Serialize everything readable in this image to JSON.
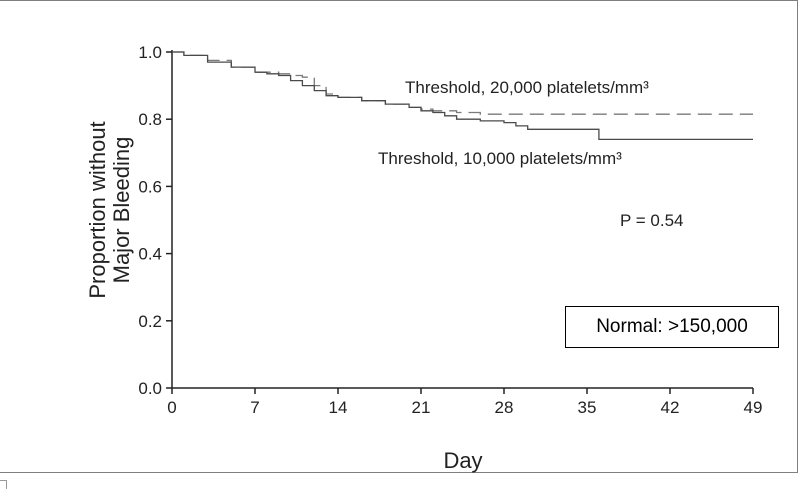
{
  "chart_data": {
    "type": "line",
    "xlabel": "Day",
    "ylabel_line1": "Proportion without",
    "ylabel_line2": "Major Bleeding",
    "xlim": [
      0,
      49
    ],
    "ylim": [
      0.0,
      1.0
    ],
    "xticks": [
      0,
      7,
      14,
      21,
      28,
      35,
      42,
      49
    ],
    "yticks": [
      0.0,
      0.2,
      0.4,
      0.6,
      0.8,
      1.0
    ],
    "xtick_labels": [
      "0",
      "7",
      "14",
      "21",
      "28",
      "35",
      "42",
      "49"
    ],
    "ytick_labels": [
      "0.0",
      "0.2",
      "0.4",
      "0.6",
      "0.8",
      "1.0"
    ],
    "grid": false,
    "series": [
      {
        "name": "Threshold, 20,000 platelets/mm³",
        "style": "dashed",
        "color": "#7a7a7a",
        "x": [
          0,
          1,
          3,
          5,
          7,
          9,
          10,
          11,
          12,
          13,
          14,
          16,
          18,
          20,
          21,
          22,
          24,
          26,
          28,
          30,
          33,
          35,
          38,
          42,
          46,
          49
        ],
        "y": [
          1.0,
          0.99,
          0.975,
          0.955,
          0.94,
          0.935,
          0.93,
          0.925,
          0.9,
          0.875,
          0.865,
          0.855,
          0.845,
          0.835,
          0.83,
          0.825,
          0.82,
          0.815,
          0.815,
          0.815,
          0.815,
          0.815,
          0.815,
          0.815,
          0.815,
          0.815
        ]
      },
      {
        "name": "Threshold, 10,000 platelets/mm³",
        "style": "solid",
        "color": "#4a4a4a",
        "x": [
          0,
          1,
          3,
          5,
          7,
          8,
          9,
          10,
          11,
          12,
          13,
          14,
          16,
          18,
          20,
          21,
          22,
          23,
          24,
          26,
          28,
          29,
          30,
          33,
          35,
          36,
          38,
          42,
          46,
          49
        ],
        "y": [
          1.0,
          0.99,
          0.97,
          0.955,
          0.94,
          0.935,
          0.93,
          0.915,
          0.9,
          0.885,
          0.87,
          0.865,
          0.855,
          0.845,
          0.835,
          0.825,
          0.82,
          0.81,
          0.8,
          0.795,
          0.79,
          0.78,
          0.77,
          0.77,
          0.77,
          0.74,
          0.74,
          0.74,
          0.74,
          0.74
        ]
      }
    ],
    "annotations": [
      {
        "text": "Threshold, 20,000 platelets/mm³",
        "near_series": 0
      },
      {
        "text": "Threshold, 10,000 platelets/mm³",
        "near_series": 1
      },
      {
        "text": "P = 0.54"
      }
    ]
  },
  "legend_box": {
    "text": "Normal: >150,000"
  }
}
